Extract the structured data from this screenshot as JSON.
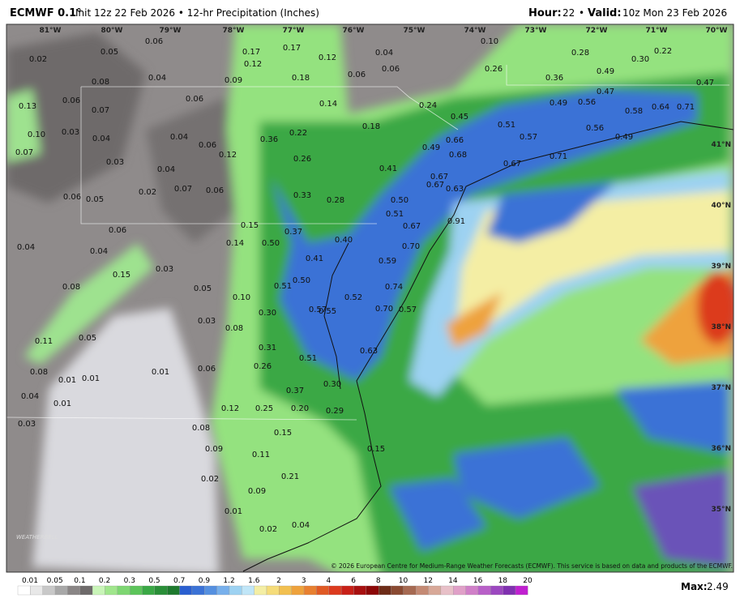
{
  "header": {
    "model": "ECMWF 0.1°",
    "description": "Init 12z 22 Feb 2026 • 12-hr Precipitation (Inches)",
    "hour_key": "Hour:",
    "hour": "22",
    "separator": "•",
    "valid_key": "Valid:",
    "valid": "10z Mon 23 Feb 2026"
  },
  "map": {
    "longitude_labels": [
      "81°W",
      "80°W",
      "79°W",
      "78°W",
      "77°W",
      "76°W",
      "75°W",
      "74°W",
      "73°W",
      "72°W",
      "71°W",
      "70°W"
    ],
    "latitude_labels": [
      "41°N",
      "40°N",
      "39°N",
      "38°N",
      "37°N",
      "36°N",
      "35°N"
    ],
    "precip_labels": [
      "0.02",
      "0.05",
      "0.06",
      "0.17",
      "0.12",
      "0.17",
      "0.12",
      "0.04",
      "0.10",
      "0.28",
      "0.30",
      "0.22",
      "0.08",
      "0.04",
      "0.09",
      "0.18",
      "0.06",
      "0.06",
      "0.26",
      "0.36",
      "0.49",
      "0.47",
      "0.13",
      "0.06",
      "0.07",
      "0.06",
      "0.14",
      "0.24",
      "0.45",
      "0.51",
      "0.49",
      "0.56",
      "0.47",
      "0.58",
      "0.64",
      "0.71",
      "0.10",
      "0.03",
      "0.04",
      "0.04",
      "0.06",
      "0.22",
      "0.18",
      "0.36",
      "0.66",
      "0.57",
      "0.56",
      "0.49",
      "0.07",
      "0.03",
      "0.12",
      "0.26",
      "0.49",
      "0.68",
      "0.71",
      "0.67",
      "0.04",
      "0.41",
      "0.02",
      "0.07",
      "0.06",
      "0.33",
      "0.28",
      "0.67",
      "0.67",
      "0.63",
      "0.05",
      "0.06",
      "0.50",
      "0.51",
      "0.91",
      "0.67",
      "0.15",
      "0.06",
      "0.37",
      "0.40",
      "0.04",
      "0.04",
      "0.14",
      "0.50",
      "0.70",
      "0.41",
      "0.59",
      "0.15",
      "0.03",
      "0.50",
      "0.51",
      "0.74",
      "0.08",
      "0.05",
      "0.10",
      "0.52",
      "0.55",
      "0.57",
      "0.70",
      "0.57",
      "0.30",
      "0.03",
      "0.08",
      "0.11",
      "0.05",
      "0.31",
      "0.63",
      "0.51",
      "0.26",
      "0.01",
      "0.06",
      "0.08",
      "0.01",
      "0.01",
      "0.30",
      "0.37",
      "0.04",
      "0.01",
      "0.12",
      "0.25",
      "0.20",
      "0.29",
      "0.03",
      "0.08",
      "0.15",
      "0.09",
      "0.11",
      "0.15",
      "0.21",
      "0.02",
      "0.09",
      "0.01",
      "0.02",
      "0.04"
    ],
    "logo": "WEATHERBELL"
  },
  "footer": {
    "credit": "© 2026 European Centre for Medium-Range Weather Forecasts (ECMWF). This service is based on data and products of the ECMWF.",
    "legend_labels": [
      "0.01",
      "0.05",
      "0.1",
      "0.2",
      "0.3",
      "0.5",
      "0.7",
      "0.9",
      "1.2",
      "1.6",
      "2",
      "3",
      "4",
      "6",
      "8",
      "10",
      "12",
      "14",
      "16",
      "18",
      "20"
    ],
    "max_key": "Max:",
    "max_value": "2.49"
  }
}
